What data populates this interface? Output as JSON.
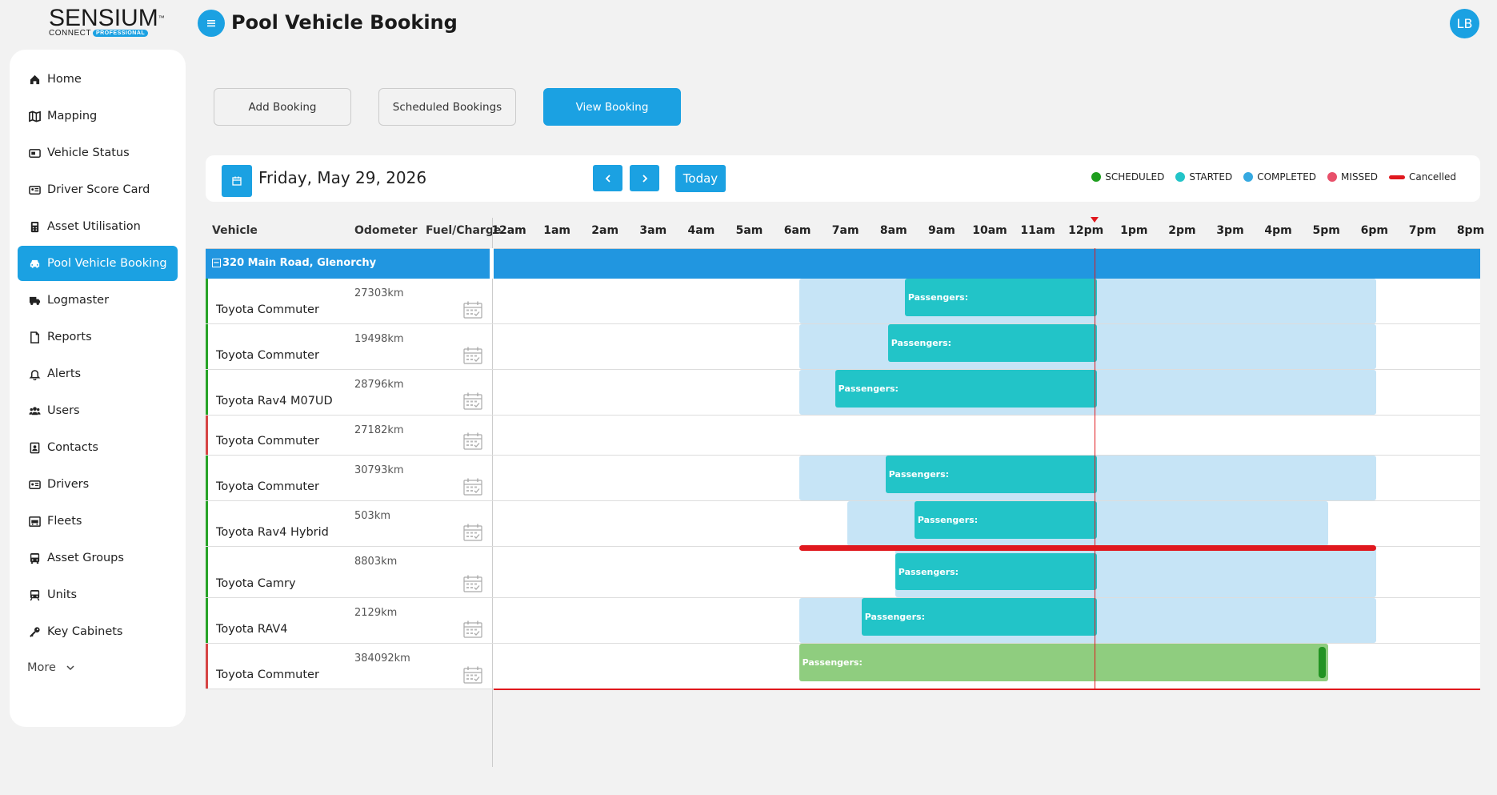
{
  "logo": {
    "main": "SENSIUM",
    "tm": "™",
    "sub1": "CONNECT",
    "sub2": "PROFESSIONAL"
  },
  "header": {
    "title": "Pool Vehicle Booking",
    "avatar": "LB"
  },
  "sidebar": {
    "items": [
      {
        "label": "Home",
        "icon": "home-icon"
      },
      {
        "label": "Mapping",
        "icon": "map-icon"
      },
      {
        "label": "Vehicle Status",
        "icon": "status-icon"
      },
      {
        "label": "Driver Score Card",
        "icon": "scorecard-icon"
      },
      {
        "label": "Asset Utilisation",
        "icon": "calculator-icon"
      },
      {
        "label": "Pool Vehicle Booking",
        "icon": "car-icon"
      },
      {
        "label": "Logmaster",
        "icon": "truck-icon"
      },
      {
        "label": "Reports",
        "icon": "file-icon"
      },
      {
        "label": "Alerts",
        "icon": "bell-icon"
      },
      {
        "label": "Users",
        "icon": "users-icon"
      },
      {
        "label": "Contacts",
        "icon": "contacts-icon"
      },
      {
        "label": "Drivers",
        "icon": "id-card-icon"
      },
      {
        "label": "Fleets",
        "icon": "fleet-icon"
      },
      {
        "label": "Asset Groups",
        "icon": "bus-icon"
      },
      {
        "label": "Units",
        "icon": "unit-icon"
      },
      {
        "label": "Key Cabinets",
        "icon": "key-icon"
      }
    ],
    "more": "More"
  },
  "tabs": {
    "add": "Add Booking",
    "scheduled": "Scheduled Bookings",
    "view": "View Booking"
  },
  "datebar": {
    "date": "Friday, May 29, 2026",
    "today": "Today"
  },
  "legend": [
    {
      "label": "SCHEDULED",
      "color": "#1e9e1e"
    },
    {
      "label": "STARTED",
      "color": "#22c4c8"
    },
    {
      "label": "COMPLETED",
      "color": "#36a9e1"
    },
    {
      "label": "MISSED",
      "color": "#e8506a"
    },
    {
      "label": "Cancelled",
      "color": "#e0181e"
    }
  ],
  "columns": {
    "vehicle": "Vehicle",
    "odometer": "Odometer",
    "fuel": "Fuel/Charge"
  },
  "hours": [
    "12am",
    "1am",
    "2am",
    "3am",
    "4am",
    "5am",
    "6am",
    "7am",
    "8am",
    "9am",
    "10am",
    "11am",
    "12pm",
    "1pm",
    "2pm",
    "3pm",
    "4pm",
    "5pm",
    "6pm",
    "7pm",
    "8pm"
  ],
  "group": {
    "label": "320 Main Road, Glenorchy",
    "toggle": "−"
  },
  "now_hour": 12.15,
  "bar_label": "Passengers:",
  "vehicles": [
    {
      "name": "Toyota Commuter",
      "odometer": "27303km",
      "status": "#27a327",
      "height": 57,
      "bg": [
        6.0,
        18.0
      ],
      "bar": [
        8.2,
        12.2
      ],
      "bar_type": "teal"
    },
    {
      "name": "Toyota Commuter",
      "odometer": "19498km",
      "status": "#27a327",
      "height": 57,
      "bg": [
        6.0,
        18.0
      ],
      "bar": [
        7.85,
        12.2
      ],
      "bar_type": "teal"
    },
    {
      "name": "Toyota Rav4 M07UD",
      "odometer": "28796km",
      "status": "#27a327",
      "height": 57,
      "bg": [
        6.0,
        18.0
      ],
      "bar": [
        6.75,
        12.2
      ],
      "bar_type": "teal"
    },
    {
      "name": "Toyota Commuter",
      "odometer": "27182km",
      "status": "#d64545",
      "height": 50,
      "bg": null,
      "bar": null,
      "bar_type": null
    },
    {
      "name": "Toyota Commuter",
      "odometer": "30793km",
      "status": "#27a327",
      "height": 57,
      "bg": [
        6.0,
        18.0
      ],
      "bar": [
        7.8,
        12.2
      ],
      "bar_type": "teal"
    },
    {
      "name": "Toyota Rav4 Hybrid",
      "odometer": "503km",
      "status": "#27a327",
      "height": 57,
      "bg": [
        7.0,
        17.0
      ],
      "bar": [
        8.4,
        12.2
      ],
      "bar_type": "teal"
    },
    {
      "name": "Toyota Camry",
      "odometer": "8803km",
      "status": "#27a327",
      "height": 64,
      "bg": [
        8.0,
        18.0
      ],
      "bar": [
        8.0,
        12.2
      ],
      "bar_type": "teal",
      "cancelled": [
        6.0,
        18.0
      ]
    },
    {
      "name": "Toyota RAV4",
      "odometer": "2129km",
      "status": "#27a327",
      "height": 57,
      "bg": [
        6.0,
        18.0
      ],
      "bar": [
        7.3,
        12.2
      ],
      "bar_type": "teal"
    },
    {
      "name": "Toyota Commuter",
      "odometer": "384092km",
      "status": "#d64545",
      "height": 57,
      "bg": null,
      "bar": [
        6.0,
        17.0
      ],
      "bar_type": "green",
      "tick": 16.8
    }
  ]
}
